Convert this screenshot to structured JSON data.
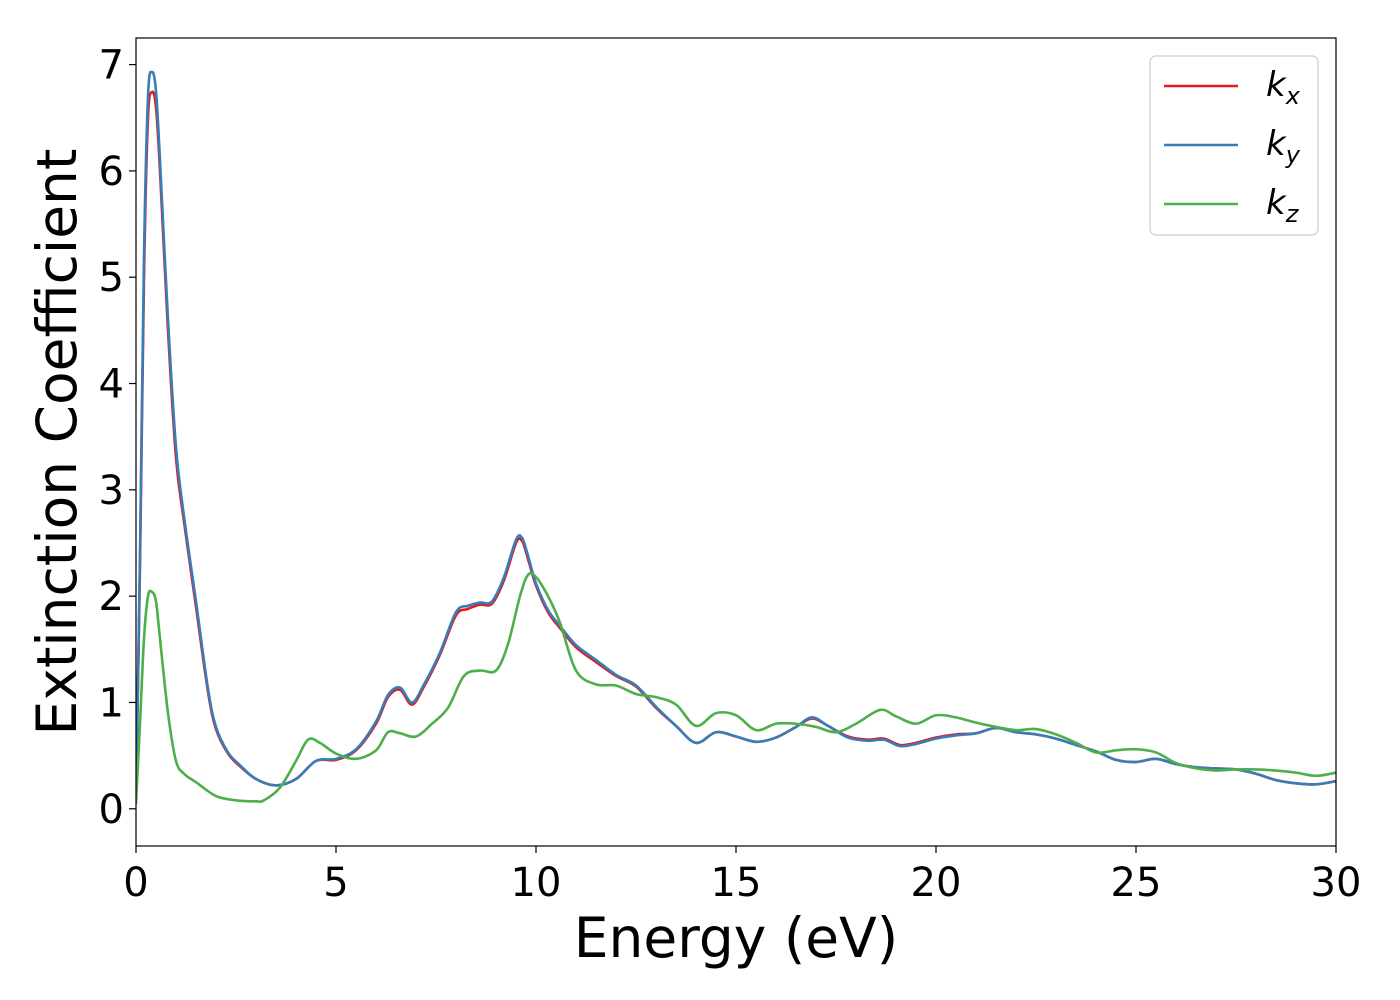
{
  "chart_data": {
    "type": "line",
    "xlabel": "Energy (eV)",
    "ylabel": "Extinction Coefficient",
    "xlim": [
      0,
      30
    ],
    "ylim": [
      -0.35,
      7.25
    ],
    "xticks": [
      "0",
      "5",
      "10",
      "15",
      "20",
      "25",
      "30"
    ],
    "yticks": [
      "0",
      "1",
      "2",
      "3",
      "4",
      "5",
      "6",
      "7"
    ],
    "grid": false,
    "legend_position": "top-right",
    "series": [
      {
        "name": "k_x",
        "label_main": "k",
        "label_sub": "x",
        "color": "#e41a1c",
        "x": [
          0,
          0.1,
          0.2,
          0.3,
          0.4,
          0.5,
          0.6,
          0.8,
          1.0,
          1.2,
          1.5,
          1.8,
          2.0,
          2.3,
          2.6,
          3.0,
          3.5,
          4.0,
          4.5,
          5.0,
          5.5,
          6.0,
          6.3,
          6.6,
          6.9,
          7.2,
          7.6,
          8.0,
          8.3,
          8.6,
          8.9,
          9.2,
          9.5,
          9.65,
          9.8,
          10.0,
          10.3,
          10.6,
          11.0,
          11.5,
          12.0,
          12.5,
          13.0,
          13.5,
          14.0,
          14.5,
          15.0,
          15.5,
          16.0,
          16.5,
          16.9,
          17.3,
          17.8,
          18.3,
          18.7,
          19.1,
          19.5,
          20.0,
          20.5,
          21.0,
          21.5,
          22.0,
          22.5,
          23.0,
          23.5,
          24.0,
          24.5,
          25.0,
          25.5,
          26.0,
          26.5,
          27.0,
          27.5,
          28.0,
          28.5,
          29.0,
          29.5,
          30.0
        ],
        "values": [
          0.1,
          2.3,
          5.0,
          6.5,
          6.74,
          6.6,
          6.0,
          4.5,
          3.3,
          2.7,
          1.9,
          1.1,
          0.75,
          0.52,
          0.4,
          0.28,
          0.22,
          0.28,
          0.45,
          0.46,
          0.55,
          0.8,
          1.05,
          1.12,
          0.98,
          1.15,
          1.45,
          1.82,
          1.88,
          1.92,
          1.93,
          2.15,
          2.5,
          2.52,
          2.35,
          2.1,
          1.85,
          1.7,
          1.52,
          1.38,
          1.25,
          1.15,
          0.95,
          0.78,
          0.62,
          0.72,
          0.68,
          0.63,
          0.67,
          0.77,
          0.85,
          0.78,
          0.68,
          0.65,
          0.66,
          0.6,
          0.62,
          0.67,
          0.7,
          0.71,
          0.76,
          0.72,
          0.7,
          0.66,
          0.6,
          0.54,
          0.46,
          0.44,
          0.47,
          0.42,
          0.39,
          0.38,
          0.37,
          0.33,
          0.27,
          0.24,
          0.23,
          0.26
        ]
      },
      {
        "name": "k_y",
        "label_main": "k",
        "label_sub": "y",
        "color": "#377eb8",
        "x": [
          0,
          0.1,
          0.2,
          0.3,
          0.4,
          0.5,
          0.6,
          0.8,
          1.0,
          1.2,
          1.5,
          1.8,
          2.0,
          2.3,
          2.6,
          3.0,
          3.5,
          4.0,
          4.5,
          5.0,
          5.5,
          6.0,
          6.3,
          6.6,
          6.9,
          7.2,
          7.6,
          8.0,
          8.3,
          8.6,
          8.9,
          9.2,
          9.5,
          9.65,
          9.8,
          10.0,
          10.3,
          10.6,
          11.0,
          11.5,
          12.0,
          12.5,
          13.0,
          13.5,
          14.0,
          14.5,
          15.0,
          15.5,
          16.0,
          16.5,
          16.9,
          17.3,
          17.8,
          18.3,
          18.7,
          19.1,
          19.5,
          20.0,
          20.5,
          21.0,
          21.5,
          22.0,
          22.5,
          23.0,
          23.5,
          24.0,
          24.5,
          25.0,
          25.5,
          26.0,
          26.5,
          27.0,
          27.5,
          28.0,
          28.5,
          29.0,
          29.5,
          30.0
        ],
        "values": [
          0.1,
          2.4,
          5.2,
          6.7,
          6.93,
          6.75,
          6.1,
          4.6,
          3.4,
          2.75,
          1.95,
          1.13,
          0.77,
          0.53,
          0.41,
          0.28,
          0.22,
          0.28,
          0.45,
          0.47,
          0.56,
          0.82,
          1.07,
          1.14,
          1.0,
          1.17,
          1.47,
          1.85,
          1.91,
          1.94,
          1.95,
          2.18,
          2.53,
          2.55,
          2.38,
          2.12,
          1.87,
          1.72,
          1.54,
          1.4,
          1.26,
          1.16,
          0.96,
          0.78,
          0.62,
          0.72,
          0.68,
          0.63,
          0.67,
          0.77,
          0.86,
          0.78,
          0.67,
          0.64,
          0.65,
          0.59,
          0.61,
          0.66,
          0.69,
          0.71,
          0.76,
          0.72,
          0.7,
          0.66,
          0.6,
          0.54,
          0.46,
          0.44,
          0.47,
          0.42,
          0.39,
          0.38,
          0.37,
          0.33,
          0.27,
          0.24,
          0.23,
          0.26
        ]
      },
      {
        "name": "k_z",
        "label_main": "k",
        "label_sub": "z",
        "color": "#4daf4a",
        "x": [
          0,
          0.1,
          0.2,
          0.3,
          0.4,
          0.5,
          0.6,
          0.8,
          1.0,
          1.2,
          1.5,
          2.0,
          2.5,
          3.0,
          3.2,
          3.6,
          4.0,
          4.3,
          4.6,
          5.0,
          5.5,
          6.0,
          6.3,
          6.6,
          7.0,
          7.4,
          7.8,
          8.2,
          8.6,
          9.0,
          9.3,
          9.6,
          9.8,
          10.0,
          10.3,
          10.6,
          11.0,
          11.5,
          12.0,
          12.5,
          13.0,
          13.5,
          14.0,
          14.5,
          15.0,
          15.5,
          16.0,
          16.5,
          17.0,
          17.5,
          18.0,
          18.6,
          19.0,
          19.5,
          20.0,
          20.5,
          21.0,
          21.5,
          22.0,
          22.5,
          23.0,
          23.5,
          24.0,
          24.5,
          25.0,
          25.5,
          26.0,
          26.5,
          27.0,
          27.5,
          28.0,
          28.5,
          29.0,
          29.5,
          30.0
        ],
        "values": [
          0.05,
          0.8,
          1.6,
          2.0,
          2.04,
          1.95,
          1.6,
          0.9,
          0.45,
          0.33,
          0.25,
          0.12,
          0.08,
          0.07,
          0.08,
          0.2,
          0.45,
          0.65,
          0.62,
          0.52,
          0.47,
          0.55,
          0.72,
          0.71,
          0.68,
          0.8,
          0.95,
          1.25,
          1.3,
          1.3,
          1.55,
          2.0,
          2.2,
          2.18,
          2.0,
          1.75,
          1.3,
          1.17,
          1.16,
          1.08,
          1.05,
          0.98,
          0.78,
          0.9,
          0.88,
          0.74,
          0.8,
          0.8,
          0.77,
          0.72,
          0.8,
          0.93,
          0.87,
          0.8,
          0.88,
          0.86,
          0.81,
          0.77,
          0.74,
          0.75,
          0.7,
          0.62,
          0.53,
          0.55,
          0.56,
          0.53,
          0.43,
          0.38,
          0.36,
          0.37,
          0.37,
          0.36,
          0.34,
          0.31,
          0.34
        ]
      }
    ]
  }
}
